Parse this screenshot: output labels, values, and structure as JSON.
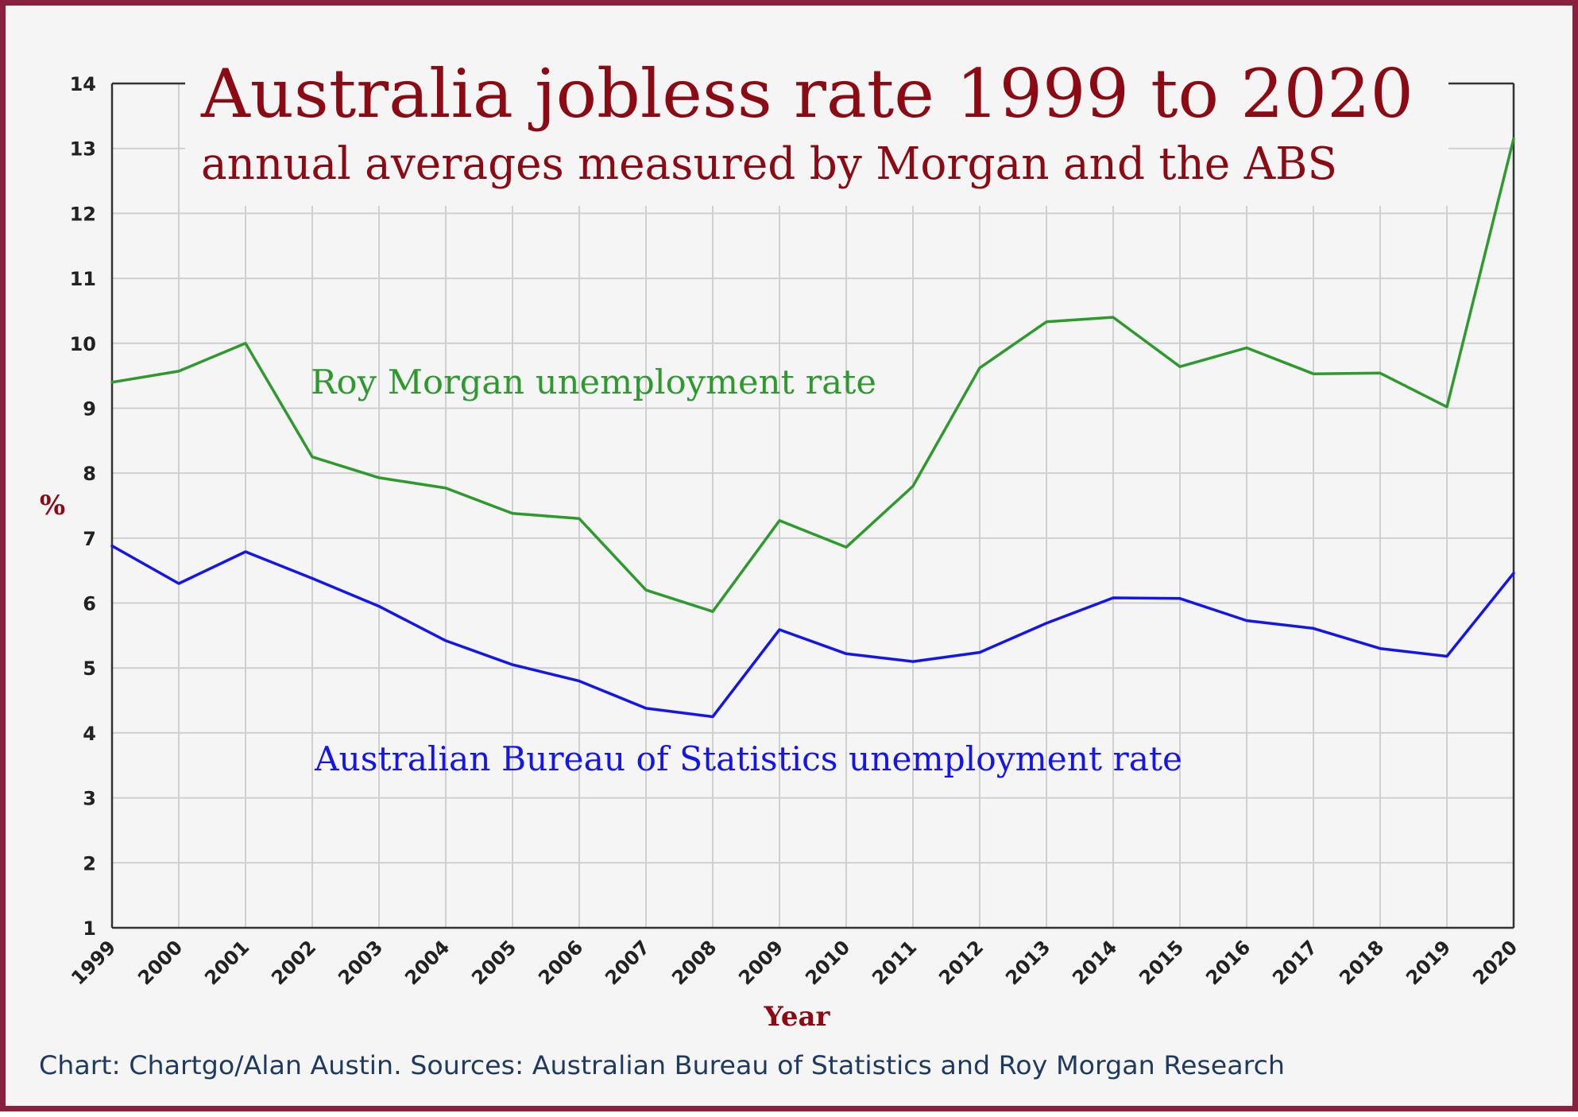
{
  "colors": {
    "frame": "#8a1f3f",
    "title": "#8b0a14",
    "morgan": "#2e9a2e",
    "abs": "#1414ee",
    "footer": "#1e3a5f"
  },
  "footer": "Chart: Chartgo/Alan Austin. Sources: Australian Bureau of Statistics and Roy Morgan Research",
  "chart_data": {
    "type": "line",
    "title": "Australia jobless rate 1999 to 2020",
    "subtitle": "annual averages measured by Morgan and the ABS",
    "xlabel": "Year",
    "ylabel": "%",
    "ylim": [
      1,
      14
    ],
    "yticks": [
      "1",
      "2",
      "3",
      "4",
      "5",
      "6",
      "7",
      "8",
      "9",
      "10",
      "11",
      "12",
      "13",
      "14"
    ],
    "grid": true,
    "categories": [
      "1999",
      "2000",
      "2001",
      "2002",
      "2003",
      "2004",
      "2005",
      "2006",
      "2007",
      "2008",
      "2009",
      "2010",
      "2011",
      "2012",
      "2013",
      "2014",
      "2015",
      "2016",
      "2017",
      "2018",
      "2019",
      "2020"
    ],
    "series": [
      {
        "name": "Roy Morgan unemployment rate",
        "color": "#2e9a2e",
        "values": [
          9.4,
          9.57,
          10.0,
          8.25,
          7.93,
          7.77,
          7.38,
          7.3,
          6.2,
          5.87,
          7.27,
          6.86,
          7.8,
          9.62,
          10.33,
          10.4,
          9.64,
          9.93,
          9.53,
          9.54,
          9.02,
          13.15
        ]
      },
      {
        "name": "Australian Bureau of Statistics unemployment rate",
        "color": "#1414ee",
        "values": [
          6.88,
          6.3,
          6.79,
          6.38,
          5.95,
          5.42,
          5.05,
          4.8,
          4.38,
          4.25,
          5.59,
          5.22,
          5.1,
          5.24,
          5.69,
          6.08,
          6.07,
          5.73,
          5.61,
          5.3,
          5.18,
          6.46
        ]
      }
    ]
  }
}
